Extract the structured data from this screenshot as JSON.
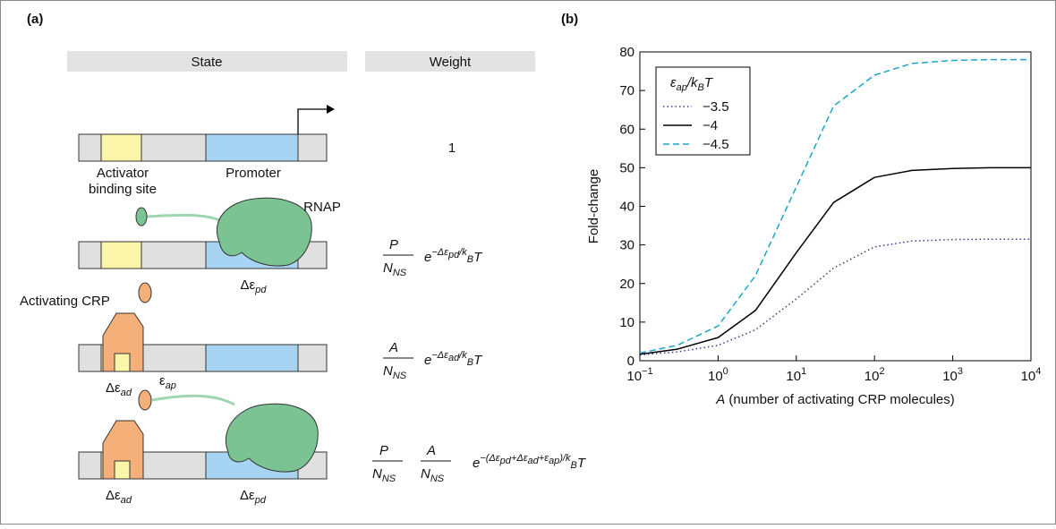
{
  "panel_a": {
    "label": "(a)",
    "state_header": "State",
    "weight_header": "Weight",
    "activator_site": [
      "Activator",
      "binding site"
    ],
    "promoter": "Promoter",
    "rnap": "RNAP",
    "activating_crp": "Activating CRP",
    "delta_eps": "Δε",
    "pd": "pd",
    "ad": "ad",
    "eps": "ε",
    "ap": "ap",
    "weights": [
      {
        "text": "1"
      },
      {
        "num": "P",
        "den": "N",
        "den_sub": "NS",
        "e": "e",
        "exp": "−Δε",
        "exp_sub": "pd",
        "tail": "/k",
        "tail_sub": "B",
        "tail_end": "T"
      },
      {
        "num": "A",
        "den": "N",
        "den_sub": "NS",
        "e": "e",
        "exp": "−Δε",
        "exp_sub": "ad",
        "tail": "/k",
        "tail_sub": "B",
        "tail_end": "T"
      },
      {
        "num": "P",
        "num2": "A",
        "den": "N",
        "den_sub": "NS",
        "e": "e",
        "exp": [
          "−(Δε",
          "pd",
          "+Δε",
          "ad",
          "+ε",
          "ap",
          ")"
        ],
        "tail": "/k",
        "tail_sub": "B",
        "tail_end": "T"
      }
    ]
  },
  "chart_data": {
    "type": "line",
    "label": "(b)",
    "x_label": [
      "A",
      " (number of activating CRP molecules)"
    ],
    "y_label": "Fold-change",
    "legend_title": [
      "ε",
      "ap",
      "/k",
      "B",
      "T"
    ],
    "legend": "upper left",
    "xscale": "log",
    "x": [
      0.1,
      0.3,
      1,
      3,
      10,
      30,
      100,
      300,
      1000,
      3000,
      10000
    ],
    "series": [
      {
        "name": "−3.5",
        "color": "#3b3b8f",
        "dash": "dotted",
        "values": [
          1.5,
          2.3,
          4,
          8,
          16,
          24,
          29.5,
          31,
          31.4,
          31.5,
          31.5
        ]
      },
      {
        "name": "−4",
        "color": "#000000",
        "dash": "solid",
        "values": [
          1.7,
          3,
          6,
          13,
          28,
          41,
          47.5,
          49.3,
          49.8,
          50,
          50
        ]
      },
      {
        "name": "−4.5",
        "color": "#1ba6c9",
        "dash": "dashed",
        "values": [
          2,
          4,
          9,
          22,
          45,
          66,
          74,
          77,
          77.8,
          78,
          78
        ]
      }
    ],
    "xlim": [
      0.1,
      10000
    ],
    "xticks": [
      {
        "value": 0.1,
        "label": "10",
        "exponent": "−1"
      },
      {
        "value": 1,
        "label": "10",
        "exponent": "0"
      },
      {
        "value": 10,
        "label": "10",
        "exponent": "1"
      },
      {
        "value": 100,
        "label": "10",
        "exponent": "2"
      },
      {
        "value": 1000,
        "label": "10",
        "exponent": "3"
      },
      {
        "value": 10000,
        "label": "10",
        "exponent": "4"
      }
    ],
    "ylim": [
      0,
      80
    ],
    "yticks": [
      0,
      10,
      20,
      30,
      40,
      50,
      60,
      70,
      80
    ]
  }
}
